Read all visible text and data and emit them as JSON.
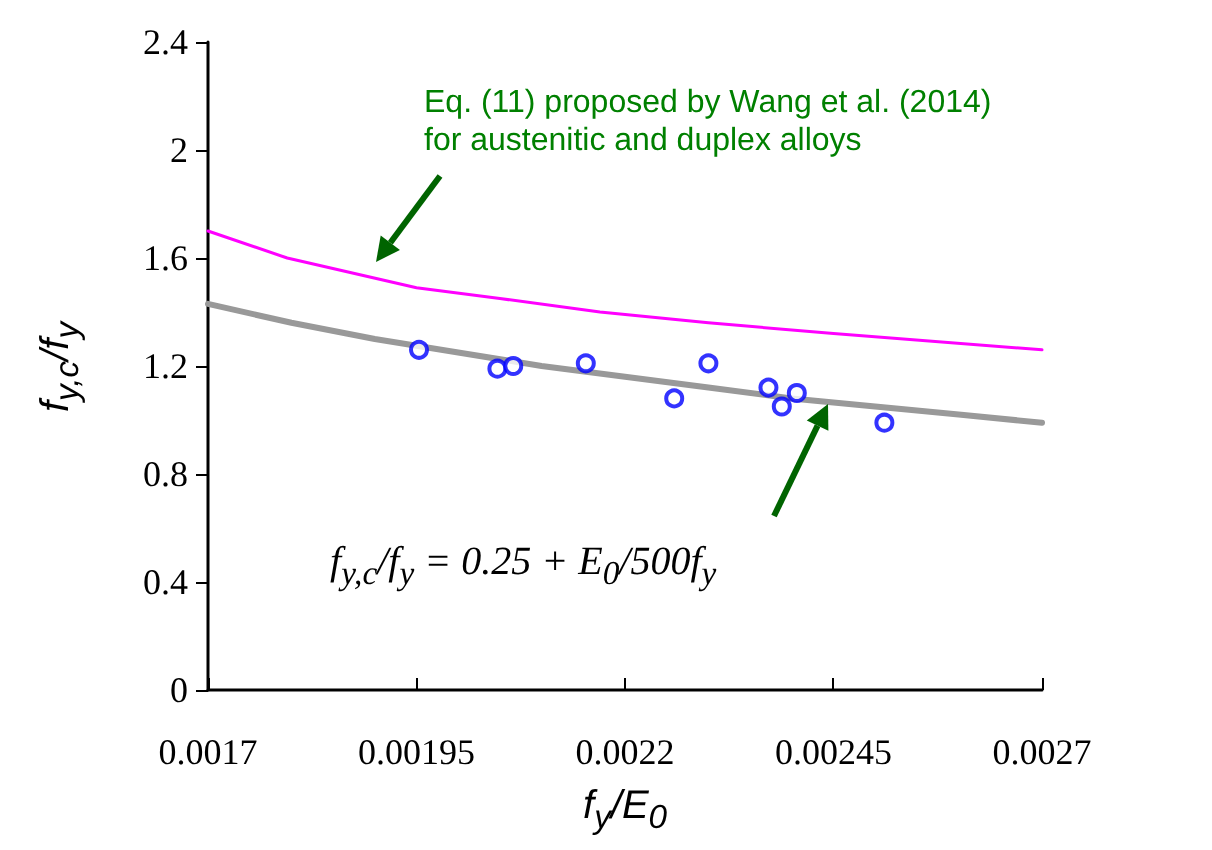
{
  "chart_data": {
    "type": "line",
    "xlabel": "f$_{y}$/E$_{0}$",
    "ylabel": "f$_{y,c}$/f$_{y}$",
    "xlim": [
      0.0017,
      0.0027
    ],
    "xticks": [
      0.0017,
      0.00195,
      0.0022,
      0.00245,
      0.0027
    ],
    "ylim": [
      0,
      2.4
    ],
    "yticks": [
      0,
      0.4,
      0.8,
      1.2,
      1.6,
      2,
      2.4
    ],
    "grid": false,
    "series": [
      {
        "color": "#ff00ff",
        "marker": "none",
        "x": [
          0.0017,
          0.001795,
          0.00195,
          0.00205,
          0.00217,
          0.0023,
          0.00245,
          0.0027
        ],
        "values": [
          1.7,
          1.6,
          1.49,
          1.45,
          1.4,
          1.36,
          1.32,
          1.26
        ]
      },
      {
        "color": "#999999",
        "marker": "none",
        "x": [
          0.0017,
          0.0018,
          0.0019,
          0.002,
          0.0021,
          0.0022,
          0.0023,
          0.0024,
          0.0025,
          0.0026,
          0.0027
        ],
        "values": [
          1.43,
          1.36,
          1.3,
          1.25,
          1.2,
          1.16,
          1.12,
          1.08,
          1.05,
          1.02,
          0.99
        ]
      },
      {
        "type": "scatter",
        "color": "#0000ff",
        "marker": "circle",
        "x": [
          0.001953,
          0.002047,
          0.002066,
          0.002153,
          0.002259,
          0.0023,
          0.002372,
          0.002388,
          0.002406,
          0.002511
        ],
        "values": [
          1.26,
          1.19,
          1.2,
          1.21,
          1.08,
          1.21,
          1.12,
          1.05,
          1.1,
          0.99
        ]
      }
    ],
    "annotations": [
      "Eq. (11) proposed by Wang et al. (2014) for austenitic and duplex alloys",
      "f$_{y,c}$/f$_{y}$ = 0.25 + E$_{0}$/500f$_{y}$"
    ]
  }
}
